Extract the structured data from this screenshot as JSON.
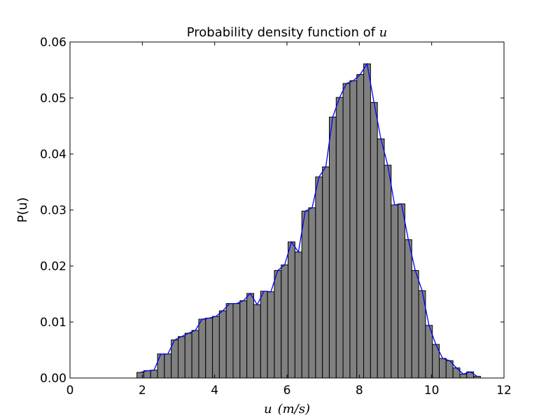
{
  "chart_data": {
    "type": "bar",
    "title_prefix": "Probability density function of ",
    "title_var": "u",
    "xlabel_var": "u",
    "xlabel_unit": "(m/s)",
    "ylabel": "P(u)",
    "xlim": [
      0,
      12
    ],
    "ylim": [
      0,
      0.06
    ],
    "xticks": [
      "0",
      "2",
      "4",
      "6",
      "8",
      "10",
      "12"
    ],
    "yticks": [
      "0.00",
      "0.01",
      "0.02",
      "0.03",
      "0.04",
      "0.05",
      "0.06"
    ],
    "bin_start": 1.85,
    "bin_width": 0.19,
    "values": [
      0.001,
      0.0013,
      0.0014,
      0.0043,
      0.0043,
      0.0068,
      0.0074,
      0.008,
      0.0085,
      0.0105,
      0.0107,
      0.011,
      0.012,
      0.0133,
      0.0133,
      0.0138,
      0.0151,
      0.0131,
      0.0155,
      0.0154,
      0.0192,
      0.0202,
      0.0243,
      0.0225,
      0.0298,
      0.0304,
      0.0359,
      0.0377,
      0.0466,
      0.0501,
      0.0526,
      0.0531,
      0.0542,
      0.0561,
      0.0492,
      0.0427,
      0.038,
      0.0309,
      0.0311,
      0.0247,
      0.0192,
      0.0156,
      0.0094,
      0.006,
      0.0035,
      0.0031,
      0.0018,
      0.0007,
      0.0011,
      0.0003
    ],
    "bar_color": "#808080",
    "line_color": "#0000ff",
    "line_series": "bin heights at bin centers",
    "grid": false
  }
}
